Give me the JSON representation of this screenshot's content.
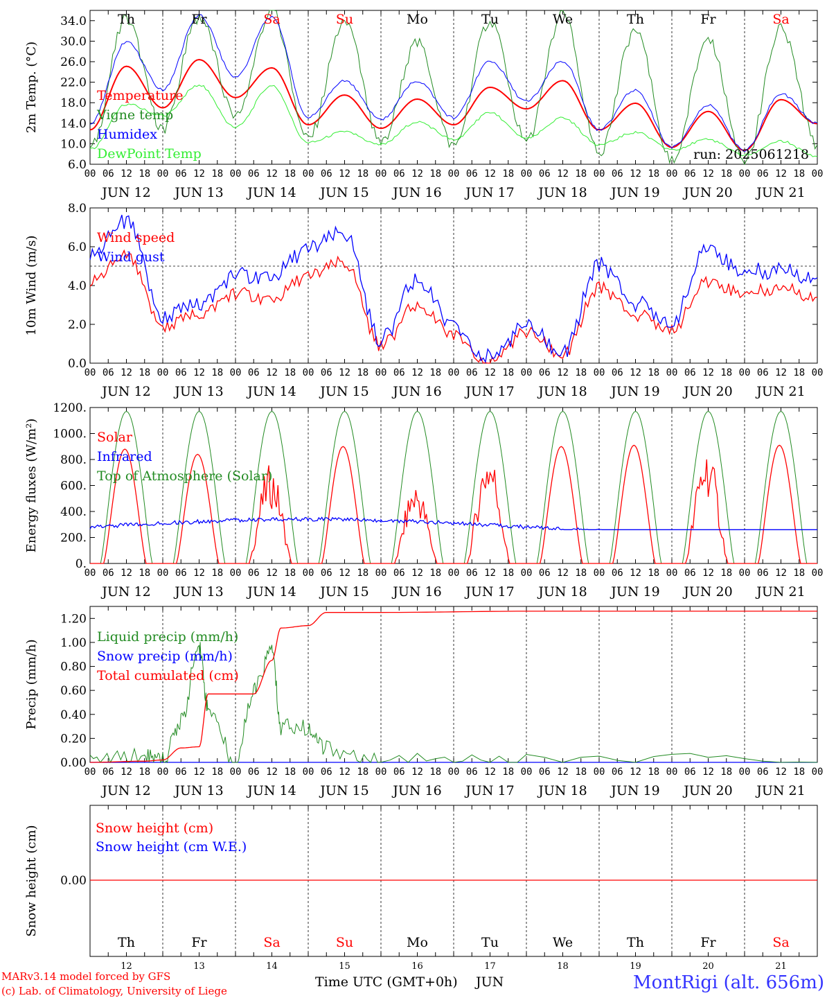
{
  "run_label": "run: 2025061218",
  "footer": {
    "credit_line1": "MARv3.14 model forced by GFS",
    "credit_line2": "(c) Lab. of Climatology, University of Liege",
    "xlabel": "Time UTC (GMT+0h)",
    "month": "JUN",
    "station": "MontRigi (alt. 656m)"
  },
  "x_axis": {
    "hour_ticks": [
      "00",
      "06",
      "12",
      "18"
    ],
    "date_labels": [
      "JUN 12",
      "JUN 13",
      "JUN 14",
      "JUN 15",
      "JUN 16",
      "JUN 17",
      "JUN 18",
      "JUN 19",
      "JUN 20",
      "JUN 21"
    ],
    "day_numbers": [
      "12",
      "13",
      "14",
      "15",
      "16",
      "17",
      "18",
      "19",
      "20",
      "21"
    ]
  },
  "days": [
    {
      "label": "Th",
      "weekend": false
    },
    {
      "label": "Fr",
      "weekend": false
    },
    {
      "label": "Sa",
      "weekend": true
    },
    {
      "label": "Su",
      "weekend": true
    },
    {
      "label": "Mo",
      "weekend": false
    },
    {
      "label": "Tu",
      "weekend": false
    },
    {
      "label": "We",
      "weekend": false
    },
    {
      "label": "Th",
      "weekend": false
    },
    {
      "label": "Fr",
      "weekend": false
    },
    {
      "label": "Sa",
      "weekend": true
    }
  ],
  "colors": {
    "red": "#ff0000",
    "darkgreen": "#228b22",
    "blue": "#0000ff",
    "lightgreen": "#33ee33",
    "weekday": "#000000",
    "weekend": "#ff0000",
    "station": "#3333ff",
    "axis": "#000000"
  },
  "chart_data": [
    {
      "type": "line",
      "ylabel": "2m Temp. (°C)",
      "ylim": [
        6,
        36
      ],
      "yticks": [
        "6.0",
        "10.0",
        "14.0",
        "18.0",
        "22.0",
        "26.0",
        "30.0",
        "34.0"
      ],
      "ytick_values": [
        6,
        10,
        14,
        18,
        22,
        26,
        30,
        34
      ],
      "x": [
        "12 00",
        "12 12",
        "13 00",
        "13 12",
        "14 00",
        "14 12",
        "15 00",
        "15 12",
        "16 00",
        "16 12",
        "17 00",
        "17 12",
        "18 00",
        "18 12",
        "19 00",
        "19 12",
        "20 00",
        "20 12",
        "21 00",
        "21 12",
        "21 24"
      ],
      "series": [
        {
          "name": "Temperature",
          "color": "red",
          "values": [
            12.7,
            25.1,
            17.0,
            26.4,
            19.0,
            24.8,
            13.7,
            19.5,
            13.0,
            18.7,
            13.7,
            21.0,
            16.8,
            22.3,
            12.7,
            17.9,
            9.3,
            16.3,
            8.7,
            18.6,
            13.9
          ]
        },
        {
          "name": "Vigne temp",
          "color": "darkgreen",
          "values": [
            9.0,
            34.2,
            13.0,
            34.8,
            15.5,
            35.8,
            11.0,
            33.8,
            10.0,
            29.5,
            9.5,
            34.0,
            10.5,
            35.0,
            8.5,
            32.3,
            6.5,
            30.5,
            6.5,
            32.2,
            9.8
          ]
        },
        {
          "name": "Humidex",
          "color": "blue",
          "values": [
            13.8,
            29.8,
            20.5,
            35.0,
            23.0,
            34.8,
            15.2,
            22.2,
            14.8,
            22.2,
            15.1,
            26.1,
            18.3,
            26.1,
            12.7,
            20.5,
            9.3,
            17.6,
            8.7,
            19.7,
            14.0
          ]
        },
        {
          "name": "DewPoint Temp",
          "color": "lightgreen",
          "values": [
            8.9,
            17.7,
            15.5,
            21.4,
            13.2,
            21.3,
            10.2,
            12.3,
            9.8,
            14.3,
            10.9,
            16.0,
            11.0,
            15.0,
            9.8,
            12.2,
            8.9,
            10.8,
            7.8,
            10.5,
            7.5
          ]
        }
      ]
    },
    {
      "type": "line",
      "ylabel": "10m Wind (m/s)",
      "ylim": [
        0,
        8
      ],
      "yticks": [
        "0.0",
        "2.0",
        "4.0",
        "6.0",
        "8.0"
      ],
      "ytick_values": [
        0,
        2,
        4,
        6,
        8
      ],
      "reference_line": 5.0,
      "x": [
        "12 00",
        "12 12",
        "13 00",
        "13 12",
        "14 00",
        "14 12",
        "15 00",
        "15 12",
        "16 00",
        "16 12",
        "17 00",
        "17 12",
        "18 00",
        "18 12",
        "19 00",
        "19 12",
        "20 00",
        "20 12",
        "21 00",
        "21 12",
        "21 24"
      ],
      "series": [
        {
          "name": "Wind speed",
          "color": "red",
          "values": [
            4.2,
            5.5,
            1.9,
            2.5,
            3.6,
            3.3,
            4.5,
            5.2,
            0.9,
            3.0,
            1.4,
            0.1,
            1.6,
            0.4,
            3.9,
            2.5,
            1.8,
            4.2,
            3.6,
            3.9,
            3.4
          ]
        },
        {
          "name": "Wind gust",
          "color": "blue",
          "values": [
            5.5,
            7.3,
            2.4,
            3.0,
            4.5,
            4.5,
            5.9,
            6.7,
            1.2,
            4.3,
            1.8,
            0.3,
            1.9,
            0.5,
            5.1,
            3.1,
            2.2,
            5.9,
            4.7,
            4.8,
            4.4
          ]
        }
      ]
    },
    {
      "type": "line",
      "ylabel": "Energy fluxes (W/m²)",
      "ylim": [
        0,
        1200
      ],
      "yticks": [
        "0.",
        "200.",
        "400.",
        "600.",
        "800.",
        "1000.",
        "1200."
      ],
      "ytick_values": [
        0,
        200,
        400,
        600,
        800,
        1000,
        1200
      ],
      "solar_peaks": [
        880,
        840,
        770,
        900,
        640,
        900,
        900,
        910,
        910,
        910
      ],
      "toa_peak": 1170,
      "infrared_start": 280,
      "infrared_range": [
        260,
        400
      ],
      "series": [
        {
          "name": "Solar",
          "color": "red"
        },
        {
          "name": "Infrared",
          "color": "blue"
        },
        {
          "name": "Top of Atmosphere (Solar)",
          "color": "darkgreen"
        }
      ]
    },
    {
      "type": "line",
      "ylabel": "Precip (mm/h)",
      "ylim": [
        0,
        1.3
      ],
      "yticks": [
        "0.00",
        "0.20",
        "0.40",
        "0.60",
        "0.80",
        "1.00",
        "1.20"
      ],
      "ytick_values": [
        0,
        0.2,
        0.4,
        0.6,
        0.8,
        1.0,
        1.2
      ],
      "x": [
        "12 00",
        "12 18",
        "13 00",
        "13 06",
        "13 12",
        "13 15",
        "14 00",
        "14 06",
        "14 12",
        "14 15",
        "15 00",
        "15 06",
        "16 00",
        "18 00",
        "21 24"
      ],
      "series": [
        {
          "name": "Liquid precip (mm/h)",
          "color": "darkgreen",
          "values": [
            0,
            0.05,
            0.01,
            0.34,
            0.97,
            0.45,
            0,
            0.6,
            0.93,
            0.3,
            0.28,
            0.12,
            0,
            0,
            0
          ]
        },
        {
          "name": "Snow precip (mm/h)",
          "color": "blue",
          "values": [
            0,
            0,
            0,
            0,
            0,
            0,
            0,
            0,
            0,
            0,
            0,
            0,
            0,
            0,
            0
          ]
        },
        {
          "name": "Total cumulated (cm)",
          "color": "red",
          "values": [
            0,
            0.01,
            0.02,
            0.12,
            0.13,
            0.57,
            0.57,
            0.57,
            0.85,
            1.12,
            1.14,
            1.25,
            1.25,
            1.26,
            1.26
          ]
        }
      ]
    },
    {
      "type": "line",
      "ylabel": "Snow height (cm)",
      "yticks": [
        "0.00"
      ],
      "ytick_values": [
        0
      ],
      "series": [
        {
          "name": "Snow height (cm)",
          "color": "red",
          "values": [
            0,
            0
          ]
        },
        {
          "name": "Snow height (cm W.E.)",
          "color": "blue",
          "values": [
            0,
            0
          ]
        }
      ]
    }
  ]
}
